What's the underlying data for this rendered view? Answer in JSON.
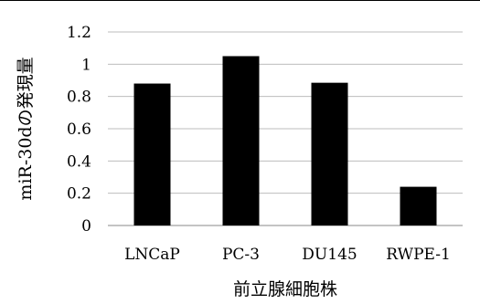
{
  "chart_data": {
    "type": "bar",
    "categories": [
      "LNCaP",
      "PC-3",
      "DU145",
      "RWPE-1"
    ],
    "series": [
      {
        "values": [
          0.88,
          1.05,
          0.885,
          0.24
        ],
        "color": "#000000"
      }
    ],
    "yticks": [
      "0",
      "0.2",
      "0.4",
      "0.6",
      "0.8",
      "1",
      "1.2"
    ],
    "ylim": [
      0,
      1.2
    ],
    "xlabel": "前立腺細胞株",
    "ylabel": "miR-30dの発現量",
    "grid": true,
    "legend": "none"
  }
}
